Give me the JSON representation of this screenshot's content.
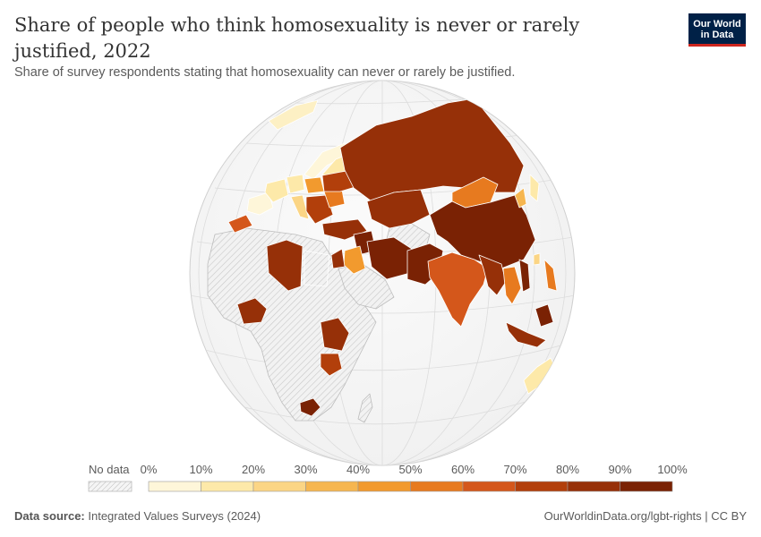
{
  "header": {
    "title": "Share of people who think homosexuality is never or rarely justified, 2022",
    "subtitle": "Share of survey respondents stating that homosexuality can never or rarely be justified."
  },
  "logo": {
    "line1": "Our World",
    "line2": "in Data"
  },
  "legend": {
    "no_data_label": "No data",
    "ticks": [
      "0%",
      "10%",
      "20%",
      "30%",
      "40%",
      "50%",
      "60%",
      "70%",
      "80%",
      "90%",
      "100%"
    ],
    "colors": [
      "#fef6d9",
      "#fde9a9",
      "#fbd585",
      "#f6b650",
      "#f29a2e",
      "#e77a1f",
      "#d4571b",
      "#b23f0b",
      "#963008",
      "#7a2204"
    ]
  },
  "map_regions": [
    {
      "name": "Russia",
      "value": 85
    },
    {
      "name": "China",
      "value": 85
    },
    {
      "name": "Mongolia",
      "value": 55
    },
    {
      "name": "Kazakhstan",
      "value": 85
    },
    {
      "name": "Iran",
      "value": 85
    },
    {
      "name": "Afghanistan",
      "value": 95
    },
    {
      "name": "Pakistan",
      "value": 95
    },
    {
      "name": "India",
      "value": 65
    },
    {
      "name": "Bangladesh",
      "value": 85
    },
    {
      "name": "Myanmar",
      "value": 85
    },
    {
      "name": "Thailand",
      "value": 60
    },
    {
      "name": "Vietnam",
      "value": 85
    },
    {
      "name": "Indonesia",
      "value": 85
    },
    {
      "name": "Malaysia",
      "value": 85
    },
    {
      "name": "Philippines",
      "value": 60
    },
    {
      "name": "Japan",
      "value": 15
    },
    {
      "name": "South Korea",
      "value": 35
    },
    {
      "name": "Taiwan",
      "value": 25
    },
    {
      "name": "Saudi Arabia region",
      "value": 60
    },
    {
      "name": "Turkey",
      "value": 85
    },
    {
      "name": "Libya",
      "value": 85
    },
    {
      "name": "Morocco",
      "value": 75
    },
    {
      "name": "Nigeria",
      "value": 85
    },
    {
      "name": "Ethiopia",
      "value": 85
    },
    {
      "name": "Kenya",
      "value": 75
    },
    {
      "name": "Zimbabwe",
      "value": 95
    },
    {
      "name": "Ukraine",
      "value": 75
    },
    {
      "name": "Poland",
      "value": 45
    },
    {
      "name": "Romania",
      "value": 60
    },
    {
      "name": "Greece",
      "value": 45
    },
    {
      "name": "Spain",
      "value": 5
    },
    {
      "name": "France",
      "value": 10
    },
    {
      "name": "Germany",
      "value": 10
    },
    {
      "name": "Sweden",
      "value": 5
    },
    {
      "name": "Norway",
      "value": 5
    },
    {
      "name": "Finland",
      "value": 15
    },
    {
      "name": "Greenland",
      "value": 5
    },
    {
      "name": "Australia",
      "value": 15
    }
  ],
  "footer": {
    "source_label": "Data source:",
    "source": "Integrated Values Surveys (2024)",
    "credit": "OurWorldinData.org/lgbt-rights | CC BY"
  }
}
